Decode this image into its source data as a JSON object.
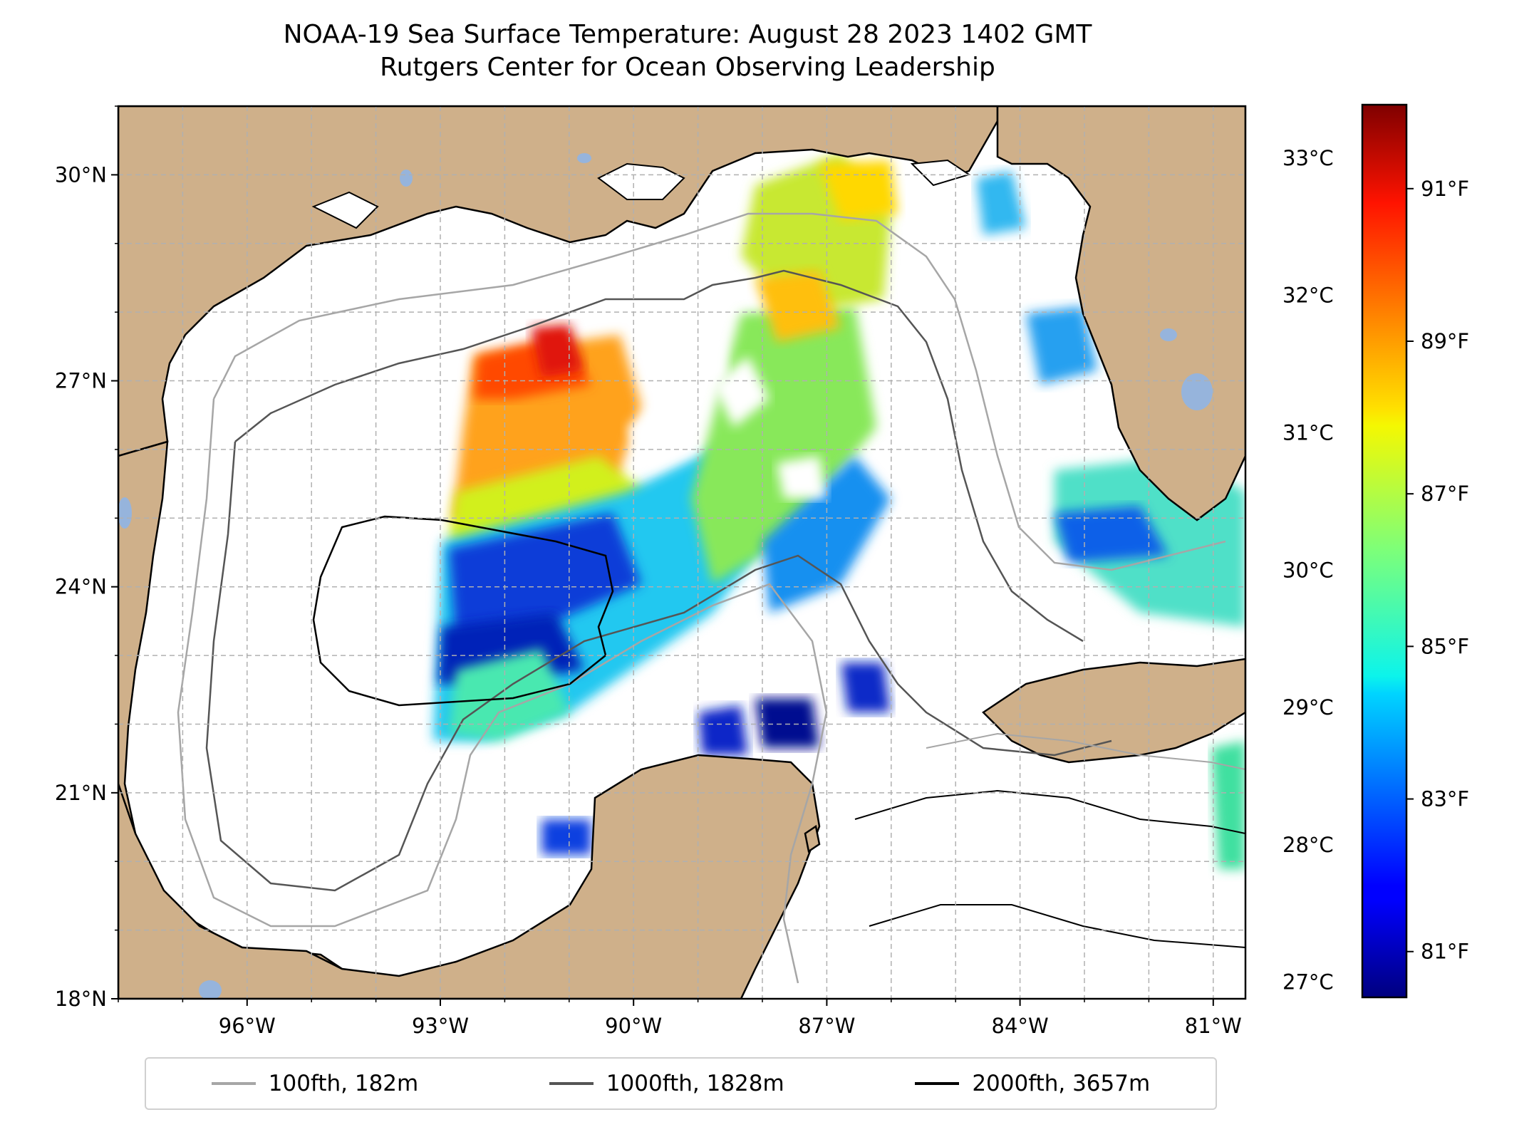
{
  "title": {
    "line1": "NOAA-19 Sea Surface Temperature: August 28 2023 1402 GMT",
    "line2": "Rutgers Center for Ocean Observing Leadership"
  },
  "map": {
    "lon_range": [
      -98,
      -80.5
    ],
    "lat_range": [
      18,
      31
    ],
    "lon_ticks": [
      {
        "value": -96,
        "label": "96°W"
      },
      {
        "value": -93,
        "label": "93°W"
      },
      {
        "value": -90,
        "label": "90°W"
      },
      {
        "value": -87,
        "label": "87°W"
      },
      {
        "value": -84,
        "label": "84°W"
      },
      {
        "value": -81,
        "label": "81°W"
      }
    ],
    "lat_ticks": [
      {
        "value": 18,
        "label": "18°N"
      },
      {
        "value": 21,
        "label": "21°N"
      },
      {
        "value": 24,
        "label": "24°N"
      },
      {
        "value": 27,
        "label": "27°N"
      },
      {
        "value": 30,
        "label": "30°N"
      }
    ],
    "gridlines": true,
    "colors": {
      "land": "#cfb08a",
      "lakes": "#96b4dc",
      "ocean": "#ffffff",
      "coastline": "#000000",
      "grid": "#b0b0b0"
    }
  },
  "colorbar": {
    "colormap": "jet",
    "celsius_ticks": [
      {
        "value": 33,
        "label": "33°C"
      },
      {
        "value": 32,
        "label": "32°C"
      },
      {
        "value": 31,
        "label": "31°C"
      },
      {
        "value": 30,
        "label": "30°C"
      },
      {
        "value": 29,
        "label": "29°C"
      },
      {
        "value": 28,
        "label": "28°C"
      },
      {
        "value": 27,
        "label": "27°C"
      }
    ],
    "fahrenheit_ticks": [
      {
        "value": 91,
        "label": "91°F"
      },
      {
        "value": 89,
        "label": "89°F"
      },
      {
        "value": 87,
        "label": "87°F"
      },
      {
        "value": 85,
        "label": "85°F"
      },
      {
        "value": 83,
        "label": "83°F"
      },
      {
        "value": 81,
        "label": "81°F"
      }
    ],
    "range_f": [
      80.4,
      92.1
    ]
  },
  "legend": [
    {
      "label": "100fth, 182m",
      "color": "#a6a6a6"
    },
    {
      "label": "1000fth, 1828m",
      "color": "#555555"
    },
    {
      "label": "2000fth, 3657m",
      "color": "#000000"
    }
  ]
}
